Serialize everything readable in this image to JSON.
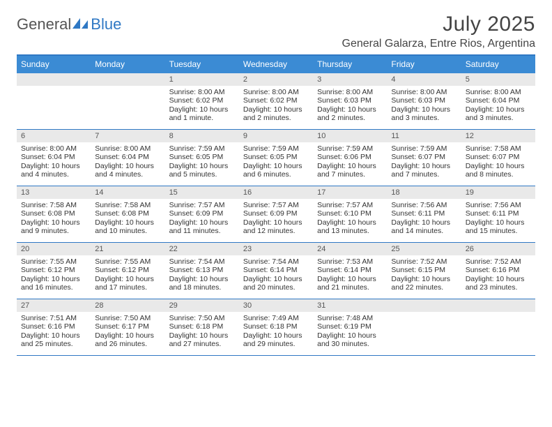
{
  "logo": {
    "text1": "General",
    "text2": "Blue"
  },
  "title": "July 2025",
  "location": "General Galarza, Entre Rios, Argentina",
  "colors": {
    "header_bg": "#3b8bd4",
    "header_text": "#ffffff",
    "border": "#2f78c4",
    "daynum_bg": "#e9e9e9",
    "body_text": "#333333"
  },
  "day_headers": [
    "Sunday",
    "Monday",
    "Tuesday",
    "Wednesday",
    "Thursday",
    "Friday",
    "Saturday"
  ],
  "weeks": [
    [
      {
        "n": "",
        "sunrise": "",
        "sunset": "",
        "daylight": ""
      },
      {
        "n": "",
        "sunrise": "",
        "sunset": "",
        "daylight": ""
      },
      {
        "n": "1",
        "sunrise": "Sunrise: 8:00 AM",
        "sunset": "Sunset: 6:02 PM",
        "daylight": "Daylight: 10 hours and 1 minute."
      },
      {
        "n": "2",
        "sunrise": "Sunrise: 8:00 AM",
        "sunset": "Sunset: 6:02 PM",
        "daylight": "Daylight: 10 hours and 2 minutes."
      },
      {
        "n": "3",
        "sunrise": "Sunrise: 8:00 AM",
        "sunset": "Sunset: 6:03 PM",
        "daylight": "Daylight: 10 hours and 2 minutes."
      },
      {
        "n": "4",
        "sunrise": "Sunrise: 8:00 AM",
        "sunset": "Sunset: 6:03 PM",
        "daylight": "Daylight: 10 hours and 3 minutes."
      },
      {
        "n": "5",
        "sunrise": "Sunrise: 8:00 AM",
        "sunset": "Sunset: 6:04 PM",
        "daylight": "Daylight: 10 hours and 3 minutes."
      }
    ],
    [
      {
        "n": "6",
        "sunrise": "Sunrise: 8:00 AM",
        "sunset": "Sunset: 6:04 PM",
        "daylight": "Daylight: 10 hours and 4 minutes."
      },
      {
        "n": "7",
        "sunrise": "Sunrise: 8:00 AM",
        "sunset": "Sunset: 6:04 PM",
        "daylight": "Daylight: 10 hours and 4 minutes."
      },
      {
        "n": "8",
        "sunrise": "Sunrise: 7:59 AM",
        "sunset": "Sunset: 6:05 PM",
        "daylight": "Daylight: 10 hours and 5 minutes."
      },
      {
        "n": "9",
        "sunrise": "Sunrise: 7:59 AM",
        "sunset": "Sunset: 6:05 PM",
        "daylight": "Daylight: 10 hours and 6 minutes."
      },
      {
        "n": "10",
        "sunrise": "Sunrise: 7:59 AM",
        "sunset": "Sunset: 6:06 PM",
        "daylight": "Daylight: 10 hours and 7 minutes."
      },
      {
        "n": "11",
        "sunrise": "Sunrise: 7:59 AM",
        "sunset": "Sunset: 6:07 PM",
        "daylight": "Daylight: 10 hours and 7 minutes."
      },
      {
        "n": "12",
        "sunrise": "Sunrise: 7:58 AM",
        "sunset": "Sunset: 6:07 PM",
        "daylight": "Daylight: 10 hours and 8 minutes."
      }
    ],
    [
      {
        "n": "13",
        "sunrise": "Sunrise: 7:58 AM",
        "sunset": "Sunset: 6:08 PM",
        "daylight": "Daylight: 10 hours and 9 minutes."
      },
      {
        "n": "14",
        "sunrise": "Sunrise: 7:58 AM",
        "sunset": "Sunset: 6:08 PM",
        "daylight": "Daylight: 10 hours and 10 minutes."
      },
      {
        "n": "15",
        "sunrise": "Sunrise: 7:57 AM",
        "sunset": "Sunset: 6:09 PM",
        "daylight": "Daylight: 10 hours and 11 minutes."
      },
      {
        "n": "16",
        "sunrise": "Sunrise: 7:57 AM",
        "sunset": "Sunset: 6:09 PM",
        "daylight": "Daylight: 10 hours and 12 minutes."
      },
      {
        "n": "17",
        "sunrise": "Sunrise: 7:57 AM",
        "sunset": "Sunset: 6:10 PM",
        "daylight": "Daylight: 10 hours and 13 minutes."
      },
      {
        "n": "18",
        "sunrise": "Sunrise: 7:56 AM",
        "sunset": "Sunset: 6:11 PM",
        "daylight": "Daylight: 10 hours and 14 minutes."
      },
      {
        "n": "19",
        "sunrise": "Sunrise: 7:56 AM",
        "sunset": "Sunset: 6:11 PM",
        "daylight": "Daylight: 10 hours and 15 minutes."
      }
    ],
    [
      {
        "n": "20",
        "sunrise": "Sunrise: 7:55 AM",
        "sunset": "Sunset: 6:12 PM",
        "daylight": "Daylight: 10 hours and 16 minutes."
      },
      {
        "n": "21",
        "sunrise": "Sunrise: 7:55 AM",
        "sunset": "Sunset: 6:12 PM",
        "daylight": "Daylight: 10 hours and 17 minutes."
      },
      {
        "n": "22",
        "sunrise": "Sunrise: 7:54 AM",
        "sunset": "Sunset: 6:13 PM",
        "daylight": "Daylight: 10 hours and 18 minutes."
      },
      {
        "n": "23",
        "sunrise": "Sunrise: 7:54 AM",
        "sunset": "Sunset: 6:14 PM",
        "daylight": "Daylight: 10 hours and 20 minutes."
      },
      {
        "n": "24",
        "sunrise": "Sunrise: 7:53 AM",
        "sunset": "Sunset: 6:14 PM",
        "daylight": "Daylight: 10 hours and 21 minutes."
      },
      {
        "n": "25",
        "sunrise": "Sunrise: 7:52 AM",
        "sunset": "Sunset: 6:15 PM",
        "daylight": "Daylight: 10 hours and 22 minutes."
      },
      {
        "n": "26",
        "sunrise": "Sunrise: 7:52 AM",
        "sunset": "Sunset: 6:16 PM",
        "daylight": "Daylight: 10 hours and 23 minutes."
      }
    ],
    [
      {
        "n": "27",
        "sunrise": "Sunrise: 7:51 AM",
        "sunset": "Sunset: 6:16 PM",
        "daylight": "Daylight: 10 hours and 25 minutes."
      },
      {
        "n": "28",
        "sunrise": "Sunrise: 7:50 AM",
        "sunset": "Sunset: 6:17 PM",
        "daylight": "Daylight: 10 hours and 26 minutes."
      },
      {
        "n": "29",
        "sunrise": "Sunrise: 7:50 AM",
        "sunset": "Sunset: 6:18 PM",
        "daylight": "Daylight: 10 hours and 27 minutes."
      },
      {
        "n": "30",
        "sunrise": "Sunrise: 7:49 AM",
        "sunset": "Sunset: 6:18 PM",
        "daylight": "Daylight: 10 hours and 29 minutes."
      },
      {
        "n": "31",
        "sunrise": "Sunrise: 7:48 AM",
        "sunset": "Sunset: 6:19 PM",
        "daylight": "Daylight: 10 hours and 30 minutes."
      },
      {
        "n": "",
        "sunrise": "",
        "sunset": "",
        "daylight": ""
      },
      {
        "n": "",
        "sunrise": "",
        "sunset": "",
        "daylight": ""
      }
    ]
  ]
}
